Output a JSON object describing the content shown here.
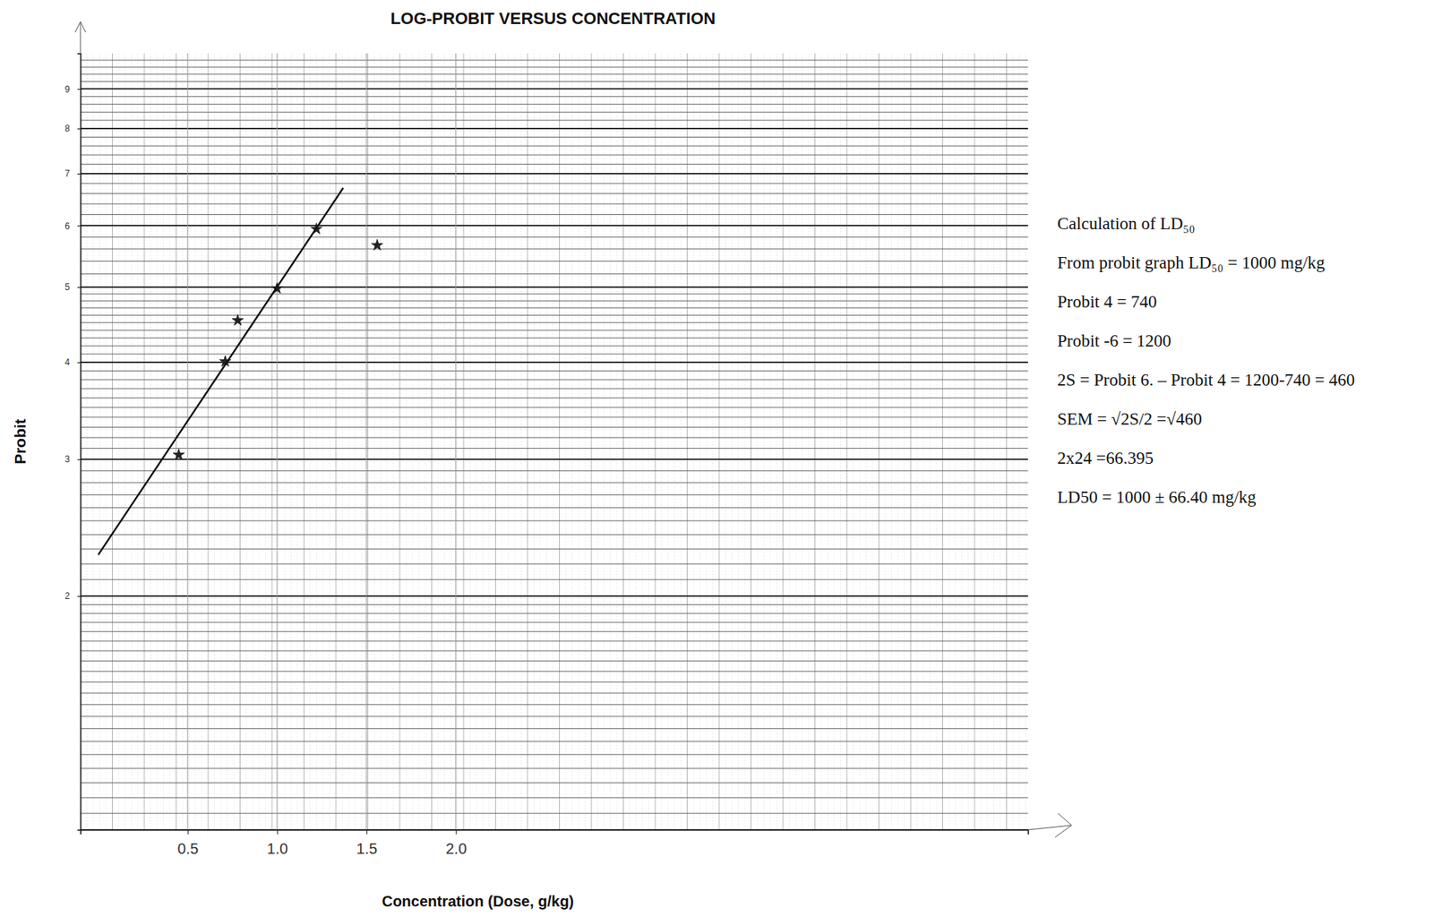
{
  "chart_data": {
    "type": "scatter",
    "title": "LOG-PROBIT VERSUS CONCENTRATION",
    "x_label": "Concentration (Dose, g/kg)",
    "y_label": "Probit",
    "log": "y",
    "grid": true,
    "xlim": [
      -0.1,
      5.2
    ],
    "xticks": [
      0.5,
      {
        "value": 1,
        "label": "1.0"
      },
      1.5,
      {
        "value": 2,
        "label": "2.0"
      }
    ],
    "ylim": [
      1,
      10
    ],
    "yticks": [
      2,
      3,
      4,
      5,
      6,
      7,
      8,
      9
    ],
    "series": [
      {
        "type": "scatter",
        "color": "#222222",
        "marker": "star",
        "x": [
          0.45,
          0.71,
          0.78,
          1.0,
          1.22,
          1.56
        ],
        "values": [
          3.04,
          4.01,
          4.53,
          4.98,
          5.94,
          5.66
        ]
      },
      {
        "type": "line",
        "color": "#111111",
        "line_style": "solid",
        "x": [
          0.0,
          1.37
        ],
        "values": [
          2.26,
          6.71
        ]
      }
    ],
    "annotations": [
      "Calculation of LD₅₀",
      "From probit graph LD₅₀ = 1000 mg/kg",
      "Probit 4 = 740",
      "Probit -6 = 1200",
      "2S = Probit 6. – Probit 4 = 1200-740 = 460",
      "SEM =  √2S/2  =√460",
      "2x24 =66.395",
      "LD50 = 1000 ± 66.40 mg/kg"
    ]
  }
}
